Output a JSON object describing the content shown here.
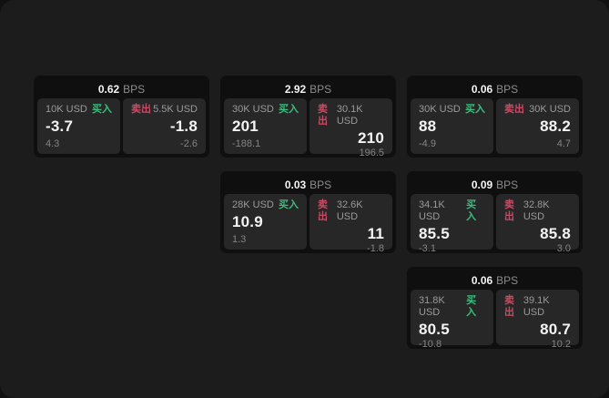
{
  "labels": {
    "bps": "BPS",
    "buy": "买入",
    "sell": "卖出"
  },
  "colors": {
    "buy": "#3bbd7e",
    "sell": "#cb4a63"
  },
  "cards": [
    {
      "bps": "0.62",
      "buy": {
        "amount": "10K USD",
        "price": "-3.7",
        "sub": "4.3"
      },
      "sell": {
        "amount": "5.5K USD",
        "price": "-1.8",
        "sub": "-2.6"
      }
    },
    {
      "bps": "2.92",
      "buy": {
        "amount": "30K USD",
        "price": "201",
        "sub": "-188.1"
      },
      "sell": {
        "amount": "30.1K USD",
        "price": "210",
        "sub": "196.5"
      }
    },
    {
      "bps": "0.06",
      "buy": {
        "amount": "30K USD",
        "price": "88",
        "sub": "-4.9"
      },
      "sell": {
        "amount": "30K USD",
        "price": "88.2",
        "sub": "4.7"
      }
    },
    {
      "bps": "0.03",
      "buy": {
        "amount": "28K USD",
        "price": "10.9",
        "sub": "1.3"
      },
      "sell": {
        "amount": "32.6K USD",
        "price": "11",
        "sub": "-1.8"
      }
    },
    {
      "bps": "0.09",
      "buy": {
        "amount": "34.1K USD",
        "price": "85.5",
        "sub": "-3.1"
      },
      "sell": {
        "amount": "32.8K USD",
        "price": "85.8",
        "sub": "3.0"
      }
    },
    {
      "bps": "0.06",
      "buy": {
        "amount": "31.8K USD",
        "price": "80.5",
        "sub": "-10.8"
      },
      "sell": {
        "amount": "39.1K USD",
        "price": "80.7",
        "sub": "10.2"
      }
    }
  ]
}
